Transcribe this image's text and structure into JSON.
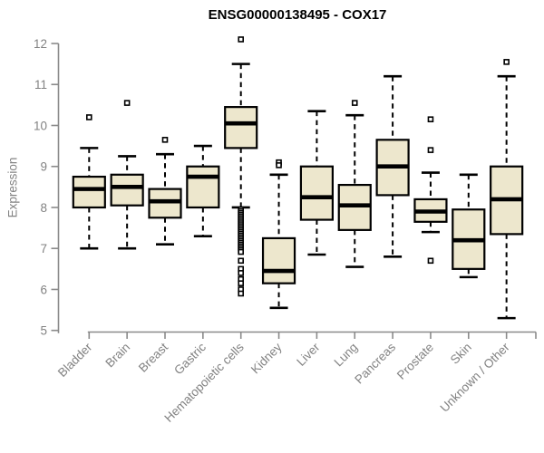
{
  "chart_data": {
    "type": "boxplot",
    "title": "ENSG00000138495 - COX17",
    "ylabel": "Expression",
    "xlabel": "",
    "ylim": [
      5,
      12
    ],
    "yticks": [
      5,
      6,
      7,
      8,
      9,
      10,
      11,
      12
    ],
    "grid": false,
    "legend": false,
    "categories": [
      "Bladder",
      "Brain",
      "Breast",
      "Gastric",
      "Hematopoietic cells",
      "Kidney",
      "Liver",
      "Lung",
      "Pancreas",
      "Prostate",
      "Skin",
      "Unknown / Other"
    ],
    "boxes": [
      {
        "category": "Bladder",
        "whisker_low": 7.0,
        "q1": 8.0,
        "median": 8.45,
        "q3": 8.75,
        "whisker_high": 9.45,
        "outliers": [
          10.2
        ]
      },
      {
        "category": "Brain",
        "whisker_low": 7.0,
        "q1": 8.05,
        "median": 8.5,
        "q3": 8.8,
        "whisker_high": 9.25,
        "outliers": [
          10.55
        ]
      },
      {
        "category": "Breast",
        "whisker_low": 7.1,
        "q1": 7.75,
        "median": 8.15,
        "q3": 8.45,
        "whisker_high": 9.3,
        "outliers": [
          9.65
        ]
      },
      {
        "category": "Gastric",
        "whisker_low": 7.3,
        "q1": 8.0,
        "median": 8.75,
        "q3": 9.0,
        "whisker_high": 9.5,
        "outliers": []
      },
      {
        "category": "Hematopoietic cells",
        "whisker_low": 8.0,
        "q1": 9.45,
        "median": 10.05,
        "q3": 10.45,
        "whisker_high": 11.5,
        "outliers": [
          12.1,
          6.7,
          6.5,
          6.4,
          6.25,
          6.15,
          6.0,
          5.9
        ],
        "outlier_band": {
          "from": 7.95,
          "to": 6.9
        }
      },
      {
        "category": "Kidney",
        "whisker_low": 5.55,
        "q1": 6.15,
        "median": 6.45,
        "q3": 7.25,
        "whisker_high": 8.8,
        "outliers": [
          9.1,
          9.03
        ]
      },
      {
        "category": "Liver",
        "whisker_low": 6.85,
        "q1": 7.7,
        "median": 8.25,
        "q3": 9.0,
        "whisker_high": 10.35,
        "outliers": []
      },
      {
        "category": "Lung",
        "whisker_low": 6.55,
        "q1": 7.45,
        "median": 8.05,
        "q3": 8.55,
        "whisker_high": 10.25,
        "outliers": [
          10.55
        ]
      },
      {
        "category": "Pancreas",
        "whisker_low": 6.8,
        "q1": 8.3,
        "median": 9.0,
        "q3": 9.65,
        "whisker_high": 11.2,
        "outliers": []
      },
      {
        "category": "Prostate",
        "whisker_low": 7.4,
        "q1": 7.65,
        "median": 7.9,
        "q3": 8.2,
        "whisker_high": 8.85,
        "outliers": [
          10.15,
          9.4,
          6.7
        ]
      },
      {
        "category": "Skin",
        "whisker_low": 6.3,
        "q1": 6.5,
        "median": 7.2,
        "q3": 7.95,
        "whisker_high": 8.8,
        "outliers": []
      },
      {
        "category": "Unknown / Other",
        "whisker_low": 5.3,
        "q1": 7.35,
        "median": 8.2,
        "q3": 9.0,
        "whisker_high": 11.2,
        "outliers": [
          11.55
        ]
      }
    ],
    "colors": {
      "box_fill": "#EDE7CD",
      "box_border": "#000000",
      "median": "#000000",
      "whisker": "#000000",
      "outlier": "#000000",
      "axis": "#8a8a8a",
      "tick_label": "#828282",
      "title": "#000000"
    }
  }
}
